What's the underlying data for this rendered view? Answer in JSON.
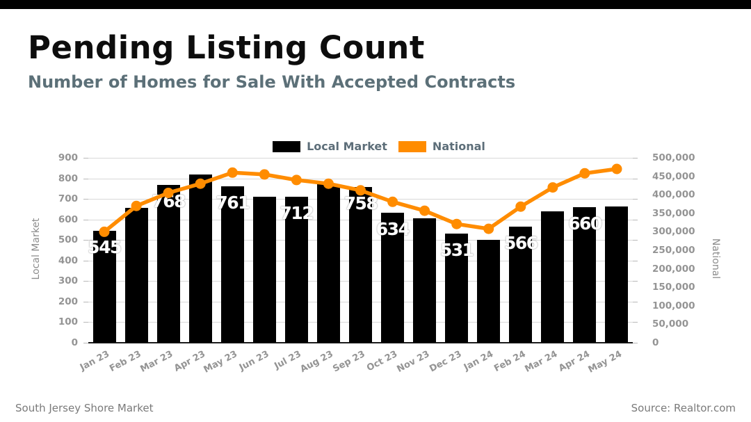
{
  "page": {
    "title": "Pending Listing Count",
    "subtitle": "Number of Homes for Sale With Accepted Contracts",
    "footer_left": "South Jersey Shore Market",
    "footer_right": "Source: Realtor.com"
  },
  "legend": {
    "items": [
      {
        "label": "Local Market",
        "color": "#000000"
      },
      {
        "label": "National",
        "color": "#FF8C00"
      }
    ]
  },
  "colors": {
    "bar": "#000000",
    "line": "#FF8C00",
    "topbar": "#000000",
    "subtitle_text": "#5C7078",
    "legend_text": "#5D6E79",
    "tick_text": "#949494",
    "grid": "#D8D8D8",
    "background": "#FFFFFF"
  },
  "chart_data": {
    "type": "bar",
    "subtype": "bar+line combo, dual y-axes",
    "title": "Pending Listing Count",
    "subtitle": "Number of Homes for Sale With Accepted Contracts",
    "grid": true,
    "legend_position": "top-center",
    "categories": [
      "Jan 23",
      "Feb 23",
      "Mar 23",
      "Apr 23",
      "May 23",
      "Jun 23",
      "Jul 23",
      "Aug 23",
      "Sep 23",
      "Oct 23",
      "Nov 23",
      "Dec 23",
      "Jan 24",
      "Feb 24",
      "Mar 24",
      "Apr 24",
      "May 24"
    ],
    "series": [
      {
        "name": "Local Market",
        "type": "bar",
        "axis": "left",
        "color": "#000000",
        "values": [
          545,
          655,
          768,
          820,
          761,
          710,
          712,
          770,
          758,
          634,
          605,
          531,
          500,
          566,
          640,
          660,
          662
        ],
        "data_labels": [
          "545",
          "",
          "768",
          "",
          "761",
          "",
          "712",
          "",
          "758",
          "634",
          "",
          "531",
          "",
          "566",
          "",
          "660",
          ""
        ]
      },
      {
        "name": "National",
        "type": "line",
        "axis": "right",
        "color": "#FF8C00",
        "values": [
          300000,
          370000,
          405000,
          430000,
          460000,
          455000,
          440000,
          430000,
          412000,
          381000,
          357000,
          321000,
          308000,
          368000,
          420000,
          458000,
          470000
        ]
      }
    ],
    "left_axis": {
      "title": "Local Market",
      "min": 0,
      "max": 900,
      "step": 100
    },
    "right_axis": {
      "title": "National",
      "min": 0,
      "max": 500000,
      "step": 50000
    }
  }
}
